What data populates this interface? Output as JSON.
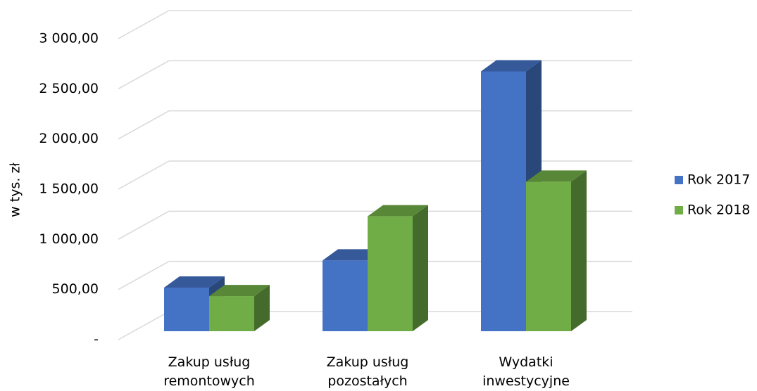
{
  "chart_data": {
    "type": "bar3d",
    "y_label": "w tys. zł",
    "categories": [
      "Zakup usług remontowych",
      "Zakup usług pozostałych",
      "Wydatki inwestycyjne"
    ],
    "series": [
      {
        "name": "Rok 2017",
        "color": "#4472c4",
        "values": [
          435,
          705,
          2590
        ]
      },
      {
        "name": "Rok 2018",
        "color": "#70ad47",
        "values": [
          350,
          1145,
          1490
        ]
      }
    ],
    "ylim": [
      0,
      3000
    ],
    "yticks": [
      {
        "value": 0,
        "label": "-"
      },
      {
        "value": 500,
        "label": "500,00"
      },
      {
        "value": 1000,
        "label": "1 000,00"
      },
      {
        "value": 1500,
        "label": "1 500,00"
      },
      {
        "value": 2000,
        "label": "2 000,00"
      },
      {
        "value": 2500,
        "label": "2 500,00"
      },
      {
        "value": 3000,
        "label": "3 000,00"
      }
    ],
    "grid": true,
    "legend": "right"
  }
}
